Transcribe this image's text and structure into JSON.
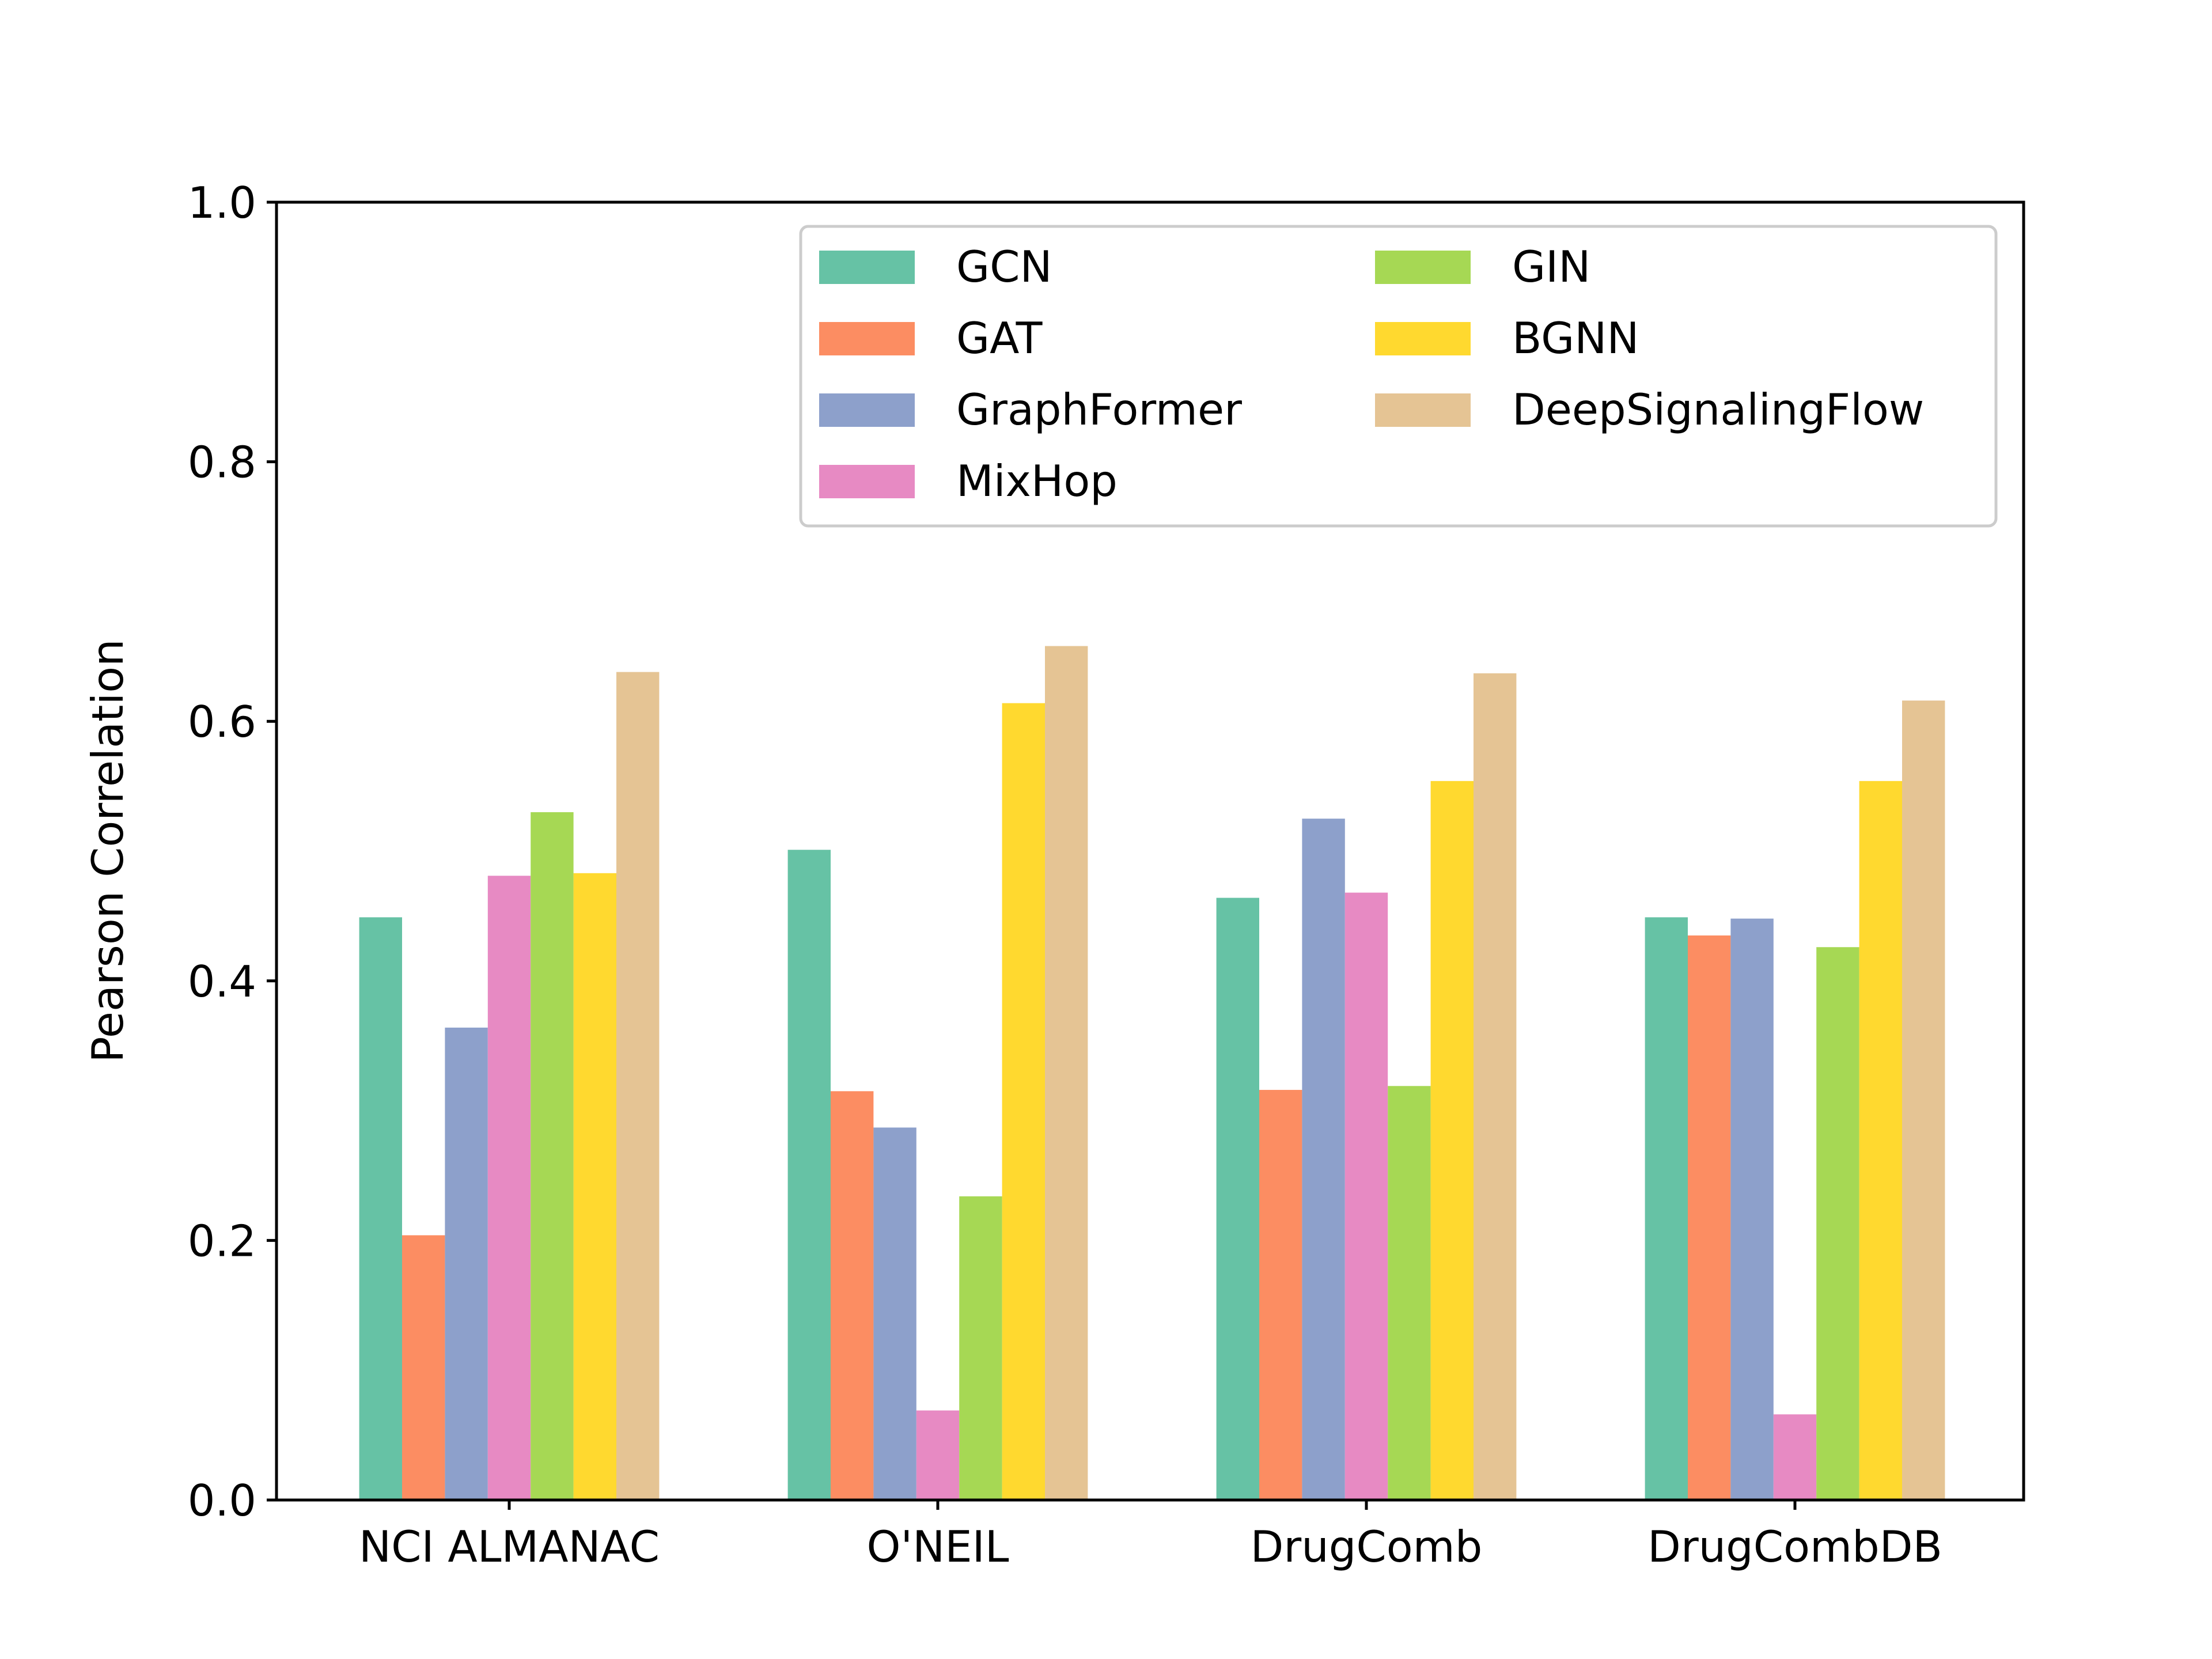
{
  "chart_data": {
    "type": "bar",
    "title": "",
    "xlabel": "",
    "ylabel": "Pearson Correlation",
    "ylim": [
      0,
      1.0
    ],
    "yticks": [
      "0.0",
      "0.2",
      "0.4",
      "0.6",
      "0.8",
      "1.0"
    ],
    "categories": [
      "NCI ALMANAC",
      "O'NEIL",
      "DrugComb",
      "DrugCombDB"
    ],
    "series": [
      {
        "name": "GCN",
        "color": "#66c2a5",
        "values": [
          0.449,
          0.501,
          0.464,
          0.449
        ]
      },
      {
        "name": "GAT",
        "color": "#fc8d62",
        "values": [
          0.204,
          0.315,
          0.316,
          0.435
        ]
      },
      {
        "name": "GraphFormer",
        "color": "#8da0cb",
        "values": [
          0.364,
          0.287,
          0.525,
          0.448
        ]
      },
      {
        "name": "MixHop",
        "color": "#e78ac3",
        "values": [
          0.481,
          0.069,
          0.468,
          0.066
        ]
      },
      {
        "name": "GIN",
        "color": "#a6d854",
        "values": [
          0.53,
          0.234,
          0.319,
          0.426
        ]
      },
      {
        "name": "BGNN",
        "color": "#ffd92f",
        "values": [
          0.483,
          0.614,
          0.554,
          0.554
        ]
      },
      {
        "name": "DeepSignalingFlow",
        "color": "#e5c494",
        "values": [
          0.638,
          0.658,
          0.637,
          0.616
        ]
      }
    ],
    "legend_position": "top-right",
    "legend_columns": 2,
    "grid": false
  }
}
